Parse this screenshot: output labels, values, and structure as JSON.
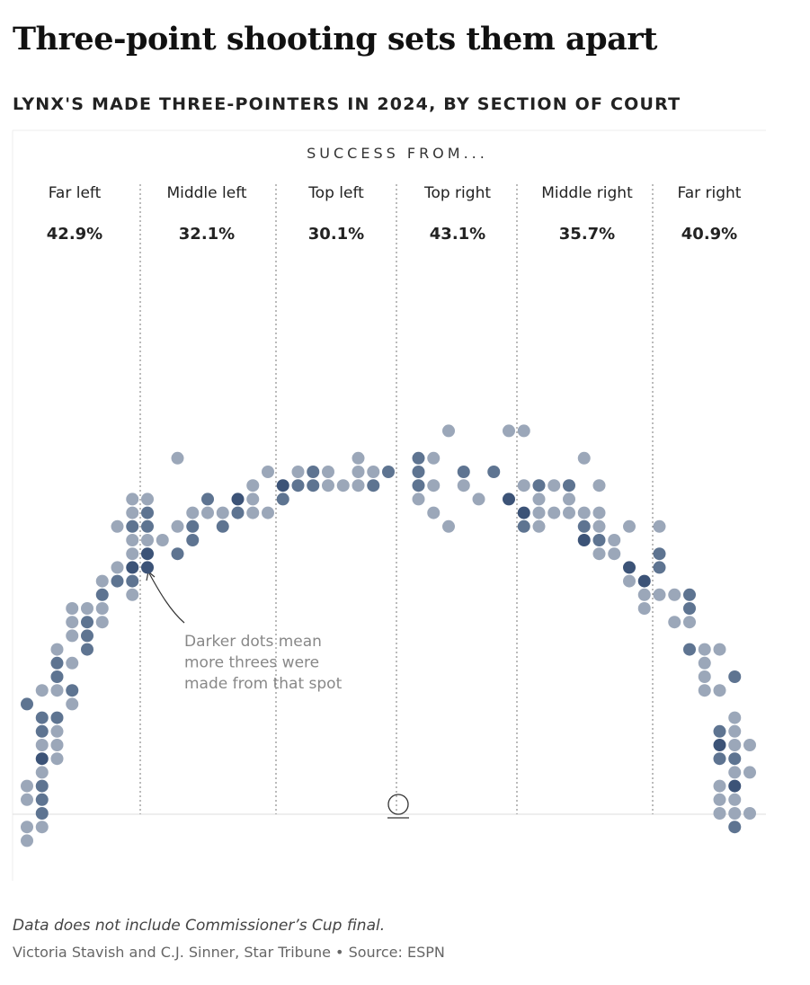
{
  "chart_data": {
    "type": "dot",
    "title": "Three-point shooting sets them apart",
    "subtitle": "LYNX'S MADE THREE-POINTERS IN 2024, BY SECTION OF COURT",
    "header": "SUCCESS FROM...",
    "sections": [
      "Far left",
      "Middle left",
      "Top left",
      "Top right",
      "Middle right",
      "Far right"
    ],
    "section_values": [
      "42.9%",
      "32.1%",
      "30.1%",
      "43.1%",
      "35.7%",
      "40.9%"
    ],
    "annotation": [
      "Darker dots mean",
      "more threes were",
      "made from that spot"
    ],
    "note": "Data does not include Commissioner’s Cup final.",
    "credit": "Victoria Stavish and C.J. Sinner, Star Tribune • Source: ESPN",
    "xlim": [
      -1,
      49
    ],
    "ylim": [
      -3,
      52
    ],
    "shade_colors": [
      "#9ba7b9",
      "#5e7491",
      "#3c5377"
    ],
    "points": [
      {
        "x": 0,
        "y": 0,
        "shade": 1
      },
      {
        "x": 0,
        "y": 1,
        "shade": 1
      },
      {
        "x": 0,
        "y": 3,
        "shade": 1
      },
      {
        "x": 0,
        "y": 4,
        "shade": 1
      },
      {
        "x": 0,
        "y": 10,
        "shade": 2
      },
      {
        "x": 1,
        "y": 1,
        "shade": 1
      },
      {
        "x": 1,
        "y": 2,
        "shade": 2
      },
      {
        "x": 1,
        "y": 3,
        "shade": 2
      },
      {
        "x": 1,
        "y": 4,
        "shade": 2
      },
      {
        "x": 1,
        "y": 5,
        "shade": 1
      },
      {
        "x": 1,
        "y": 6,
        "shade": 3
      },
      {
        "x": 1,
        "y": 7,
        "shade": 1
      },
      {
        "x": 1,
        "y": 8,
        "shade": 2
      },
      {
        "x": 1,
        "y": 9,
        "shade": 2
      },
      {
        "x": 1,
        "y": 11,
        "shade": 1
      },
      {
        "x": 2,
        "y": 6,
        "shade": 1
      },
      {
        "x": 2,
        "y": 7,
        "shade": 1
      },
      {
        "x": 2,
        "y": 8,
        "shade": 1
      },
      {
        "x": 2,
        "y": 9,
        "shade": 2
      },
      {
        "x": 2,
        "y": 11,
        "shade": 1
      },
      {
        "x": 2,
        "y": 12,
        "shade": 2
      },
      {
        "x": 2,
        "y": 13,
        "shade": 2
      },
      {
        "x": 2,
        "y": 14,
        "shade": 1
      },
      {
        "x": 3,
        "y": 10,
        "shade": 1
      },
      {
        "x": 3,
        "y": 11,
        "shade": 2
      },
      {
        "x": 3,
        "y": 13,
        "shade": 1
      },
      {
        "x": 3,
        "y": 15,
        "shade": 1
      },
      {
        "x": 3,
        "y": 16,
        "shade": 1
      },
      {
        "x": 3,
        "y": 17,
        "shade": 1
      },
      {
        "x": 4,
        "y": 14,
        "shade": 2
      },
      {
        "x": 4,
        "y": 15,
        "shade": 2
      },
      {
        "x": 4,
        "y": 16,
        "shade": 2
      },
      {
        "x": 4,
        "y": 17,
        "shade": 1
      },
      {
        "x": 5,
        "y": 16,
        "shade": 1
      },
      {
        "x": 5,
        "y": 17,
        "shade": 1
      },
      {
        "x": 5,
        "y": 18,
        "shade": 2
      },
      {
        "x": 5,
        "y": 19,
        "shade": 1
      },
      {
        "x": 6,
        "y": 19,
        "shade": 2
      },
      {
        "x": 6,
        "y": 20,
        "shade": 1
      },
      {
        "x": 6,
        "y": 23,
        "shade": 1
      },
      {
        "x": 7,
        "y": 18,
        "shade": 1
      },
      {
        "x": 7,
        "y": 19,
        "shade": 2
      },
      {
        "x": 7,
        "y": 20,
        "shade": 3
      },
      {
        "x": 7,
        "y": 21,
        "shade": 1
      },
      {
        "x": 7,
        "y": 22,
        "shade": 1
      },
      {
        "x": 7,
        "y": 23,
        "shade": 2
      },
      {
        "x": 7,
        "y": 24,
        "shade": 1
      },
      {
        "x": 7,
        "y": 25,
        "shade": 1
      },
      {
        "x": 8,
        "y": 20,
        "shade": 3
      },
      {
        "x": 8,
        "y": 21,
        "shade": 3
      },
      {
        "x": 8,
        "y": 22,
        "shade": 1
      },
      {
        "x": 8,
        "y": 23,
        "shade": 2
      },
      {
        "x": 8,
        "y": 24,
        "shade": 2
      },
      {
        "x": 8,
        "y": 25,
        "shade": 1
      },
      {
        "x": 9,
        "y": 22,
        "shade": 1
      },
      {
        "x": 10,
        "y": 21,
        "shade": 2
      },
      {
        "x": 10,
        "y": 23,
        "shade": 1
      },
      {
        "x": 10,
        "y": 28,
        "shade": 1
      },
      {
        "x": 11,
        "y": 22,
        "shade": 2
      },
      {
        "x": 11,
        "y": 23,
        "shade": 2
      },
      {
        "x": 11,
        "y": 24,
        "shade": 1
      },
      {
        "x": 12,
        "y": 24,
        "shade": 1
      },
      {
        "x": 12,
        "y": 25,
        "shade": 2
      },
      {
        "x": 13,
        "y": 23,
        "shade": 2
      },
      {
        "x": 13,
        "y": 24,
        "shade": 1
      },
      {
        "x": 14,
        "y": 24,
        "shade": 2
      },
      {
        "x": 14,
        "y": 25,
        "shade": 3
      },
      {
        "x": 15,
        "y": 24,
        "shade": 1
      },
      {
        "x": 15,
        "y": 25,
        "shade": 1
      },
      {
        "x": 15,
        "y": 26,
        "shade": 1
      },
      {
        "x": 16,
        "y": 24,
        "shade": 1
      },
      {
        "x": 16,
        "y": 27,
        "shade": 1
      },
      {
        "x": 17,
        "y": 25,
        "shade": 2
      },
      {
        "x": 17,
        "y": 26,
        "shade": 3
      },
      {
        "x": 18,
        "y": 26,
        "shade": 2
      },
      {
        "x": 18,
        "y": 27,
        "shade": 1
      },
      {
        "x": 19,
        "y": 26,
        "shade": 2
      },
      {
        "x": 19,
        "y": 27,
        "shade": 2
      },
      {
        "x": 20,
        "y": 26,
        "shade": 1
      },
      {
        "x": 20,
        "y": 27,
        "shade": 1
      },
      {
        "x": 21,
        "y": 26,
        "shade": 1
      },
      {
        "x": 22,
        "y": 26,
        "shade": 1
      },
      {
        "x": 22,
        "y": 27,
        "shade": 1
      },
      {
        "x": 22,
        "y": 28,
        "shade": 1
      },
      {
        "x": 23,
        "y": 26,
        "shade": 2
      },
      {
        "x": 23,
        "y": 27,
        "shade": 1
      },
      {
        "x": 24,
        "y": 27,
        "shade": 2
      },
      {
        "x": 26,
        "y": 25,
        "shade": 1
      },
      {
        "x": 26,
        "y": 26,
        "shade": 2
      },
      {
        "x": 26,
        "y": 27,
        "shade": 2
      },
      {
        "x": 26,
        "y": 28,
        "shade": 2
      },
      {
        "x": 27,
        "y": 24,
        "shade": 1
      },
      {
        "x": 27,
        "y": 26,
        "shade": 1
      },
      {
        "x": 27,
        "y": 28,
        "shade": 1
      },
      {
        "x": 28,
        "y": 23,
        "shade": 1
      },
      {
        "x": 28,
        "y": 30,
        "shade": 1
      },
      {
        "x": 29,
        "y": 26,
        "shade": 1
      },
      {
        "x": 29,
        "y": 27,
        "shade": 2
      },
      {
        "x": 30,
        "y": 25,
        "shade": 1
      },
      {
        "x": 31,
        "y": 27,
        "shade": 2
      },
      {
        "x": 32,
        "y": 25,
        "shade": 3
      },
      {
        "x": 32,
        "y": 30,
        "shade": 1
      },
      {
        "x": 33,
        "y": 23,
        "shade": 2
      },
      {
        "x": 33,
        "y": 24,
        "shade": 3
      },
      {
        "x": 33,
        "y": 26,
        "shade": 1
      },
      {
        "x": 33,
        "y": 30,
        "shade": 1
      },
      {
        "x": 34,
        "y": 23,
        "shade": 1
      },
      {
        "x": 34,
        "y": 24,
        "shade": 1
      },
      {
        "x": 34,
        "y": 25,
        "shade": 1
      },
      {
        "x": 34,
        "y": 26,
        "shade": 2
      },
      {
        "x": 35,
        "y": 24,
        "shade": 1
      },
      {
        "x": 35,
        "y": 26,
        "shade": 1
      },
      {
        "x": 36,
        "y": 24,
        "shade": 1
      },
      {
        "x": 36,
        "y": 25,
        "shade": 1
      },
      {
        "x": 36,
        "y": 26,
        "shade": 2
      },
      {
        "x": 37,
        "y": 22,
        "shade": 3
      },
      {
        "x": 37,
        "y": 23,
        "shade": 2
      },
      {
        "x": 37,
        "y": 24,
        "shade": 1
      },
      {
        "x": 37,
        "y": 28,
        "shade": 1
      },
      {
        "x": 38,
        "y": 21,
        "shade": 1
      },
      {
        "x": 38,
        "y": 22,
        "shade": 2
      },
      {
        "x": 38,
        "y": 23,
        "shade": 1
      },
      {
        "x": 38,
        "y": 24,
        "shade": 1
      },
      {
        "x": 38,
        "y": 26,
        "shade": 1
      },
      {
        "x": 39,
        "y": 21,
        "shade": 1
      },
      {
        "x": 39,
        "y": 22,
        "shade": 1
      },
      {
        "x": 40,
        "y": 19,
        "shade": 1
      },
      {
        "x": 40,
        "y": 20,
        "shade": 3
      },
      {
        "x": 40,
        "y": 23,
        "shade": 1
      },
      {
        "x": 41,
        "y": 17,
        "shade": 1
      },
      {
        "x": 41,
        "y": 18,
        "shade": 1
      },
      {
        "x": 41,
        "y": 19,
        "shade": 3
      },
      {
        "x": 42,
        "y": 18,
        "shade": 1
      },
      {
        "x": 42,
        "y": 20,
        "shade": 2
      },
      {
        "x": 42,
        "y": 21,
        "shade": 2
      },
      {
        "x": 42,
        "y": 23,
        "shade": 1
      },
      {
        "x": 43,
        "y": 16,
        "shade": 1
      },
      {
        "x": 43,
        "y": 18,
        "shade": 1
      },
      {
        "x": 44,
        "y": 14,
        "shade": 2
      },
      {
        "x": 44,
        "y": 16,
        "shade": 1
      },
      {
        "x": 44,
        "y": 17,
        "shade": 2
      },
      {
        "x": 44,
        "y": 18,
        "shade": 2
      },
      {
        "x": 45,
        "y": 11,
        "shade": 1
      },
      {
        "x": 45,
        "y": 12,
        "shade": 1
      },
      {
        "x": 45,
        "y": 13,
        "shade": 1
      },
      {
        "x": 45,
        "y": 14,
        "shade": 1
      },
      {
        "x": 46,
        "y": 2,
        "shade": 1
      },
      {
        "x": 46,
        "y": 3,
        "shade": 1
      },
      {
        "x": 46,
        "y": 4,
        "shade": 1
      },
      {
        "x": 46,
        "y": 6,
        "shade": 2
      },
      {
        "x": 46,
        "y": 7,
        "shade": 3
      },
      {
        "x": 46,
        "y": 8,
        "shade": 2
      },
      {
        "x": 46,
        "y": 11,
        "shade": 1
      },
      {
        "x": 46,
        "y": 14,
        "shade": 1
      },
      {
        "x": 47,
        "y": 1,
        "shade": 2
      },
      {
        "x": 47,
        "y": 2,
        "shade": 1
      },
      {
        "x": 47,
        "y": 3,
        "shade": 1
      },
      {
        "x": 47,
        "y": 4,
        "shade": 3
      },
      {
        "x": 47,
        "y": 5,
        "shade": 1
      },
      {
        "x": 47,
        "y": 6,
        "shade": 2
      },
      {
        "x": 47,
        "y": 7,
        "shade": 1
      },
      {
        "x": 47,
        "y": 8,
        "shade": 1
      },
      {
        "x": 47,
        "y": 9,
        "shade": 1
      },
      {
        "x": 47,
        "y": 12,
        "shade": 2
      },
      {
        "x": 48,
        "y": 2,
        "shade": 1
      },
      {
        "x": 48,
        "y": 5,
        "shade": 1
      },
      {
        "x": 48,
        "y": 7,
        "shade": 1
      }
    ]
  }
}
